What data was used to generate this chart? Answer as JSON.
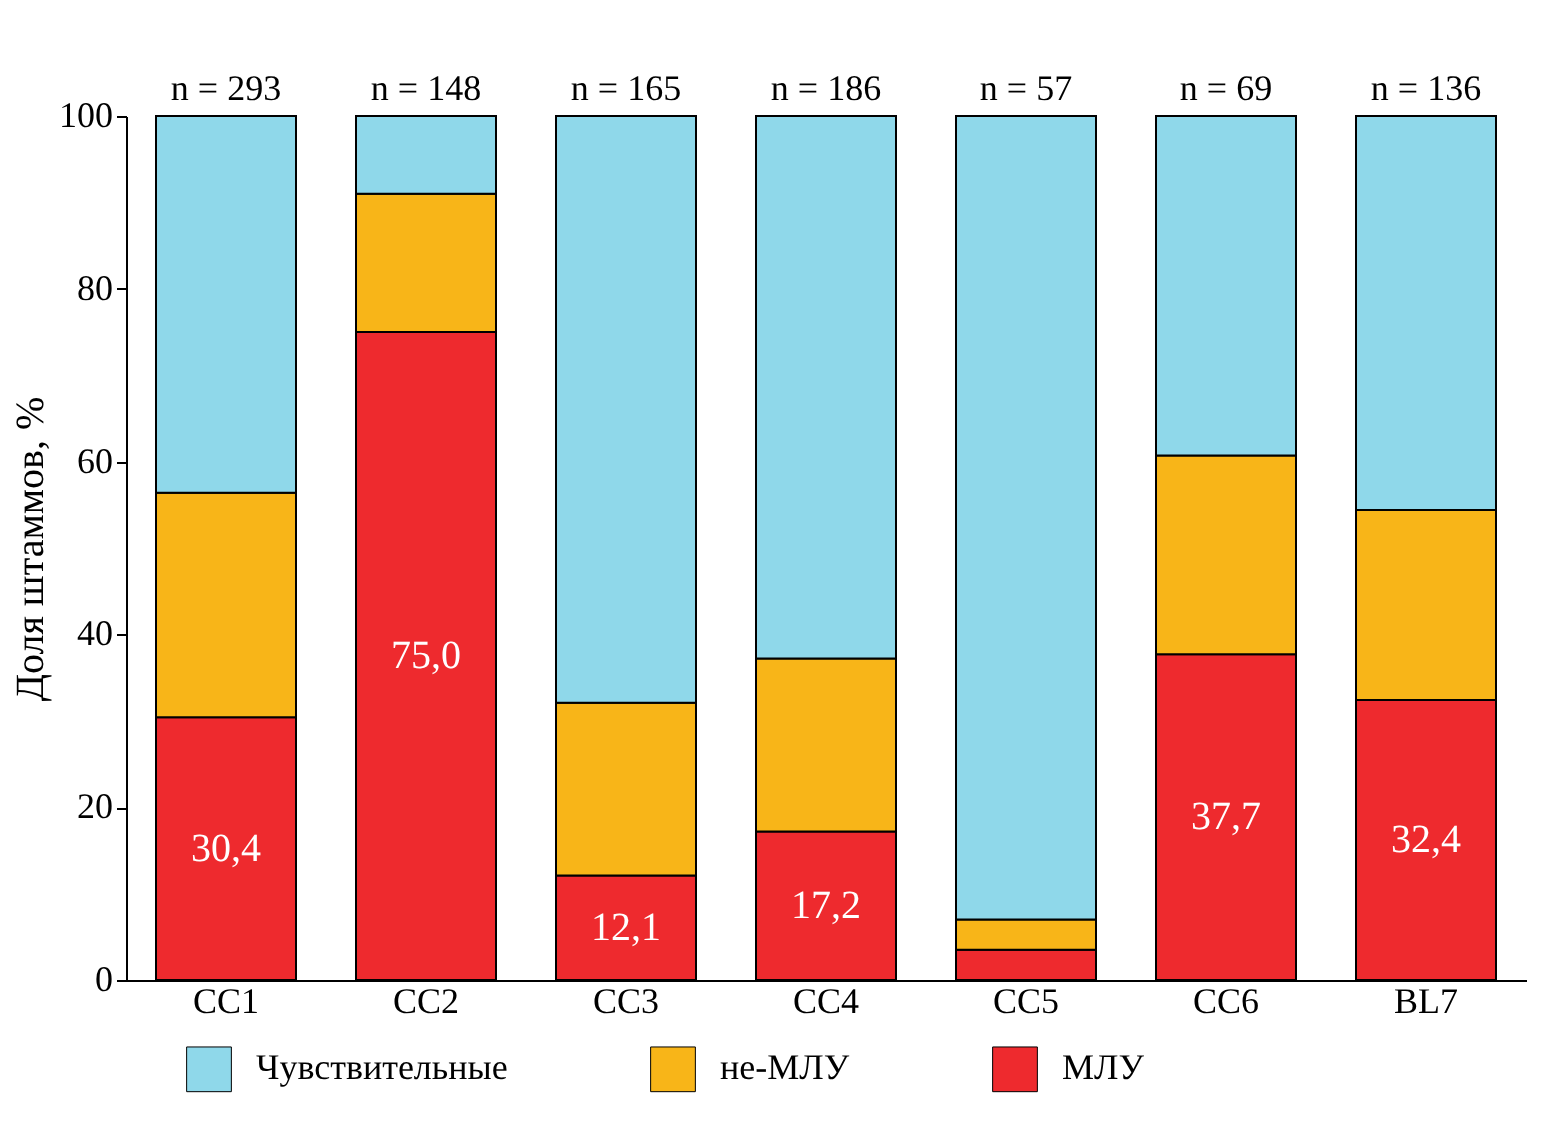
{
  "chart_data": {
    "type": "bar",
    "stacked": true,
    "ylabel": "Доля штаммов, %",
    "categories": [
      "CC1",
      "CC2",
      "CC3",
      "CC4",
      "CC5",
      "CC6",
      "BL7"
    ],
    "series": [
      {
        "name": "МЛУ",
        "color": "#ee2a2e",
        "values": [
          30.4,
          75.0,
          12.1,
          17.2,
          3.5,
          37.7,
          32.4
        ],
        "value_labels": [
          "30,4",
          "75,0",
          "12,1",
          "17,2",
          null,
          "37,7",
          "32,4"
        ]
      },
      {
        "name": "не-МЛУ",
        "color": "#f8b518",
        "values": [
          26,
          16,
          20,
          20,
          3.5,
          23,
          22
        ]
      },
      {
        "name": "Чувствительные",
        "color": "#8fd8ea",
        "values": [
          43.6,
          9,
          67.9,
          62.8,
          93,
          39.3,
          45.6
        ]
      }
    ],
    "ylim": [
      0,
      100
    ],
    "yticks": [
      0,
      20,
      40,
      60,
      80,
      100
    ],
    "grid": false,
    "legend": "bottom",
    "annotations": [
      {
        "text": "n = 293",
        "x": "CC1",
        "y": 100
      },
      {
        "text": "n = 148",
        "x": "CC2",
        "y": 100
      },
      {
        "text": "n = 165",
        "x": "CC3",
        "y": 100
      },
      {
        "text": "n = 186",
        "x": "CC4",
        "y": 100
      },
      {
        "text": "n = 57",
        "x": "CC5",
        "y": 100
      },
      {
        "text": "n = 69",
        "x": "CC6",
        "y": 100
      },
      {
        "text": "n = 136",
        "x": "BL7",
        "y": 100
      }
    ]
  }
}
